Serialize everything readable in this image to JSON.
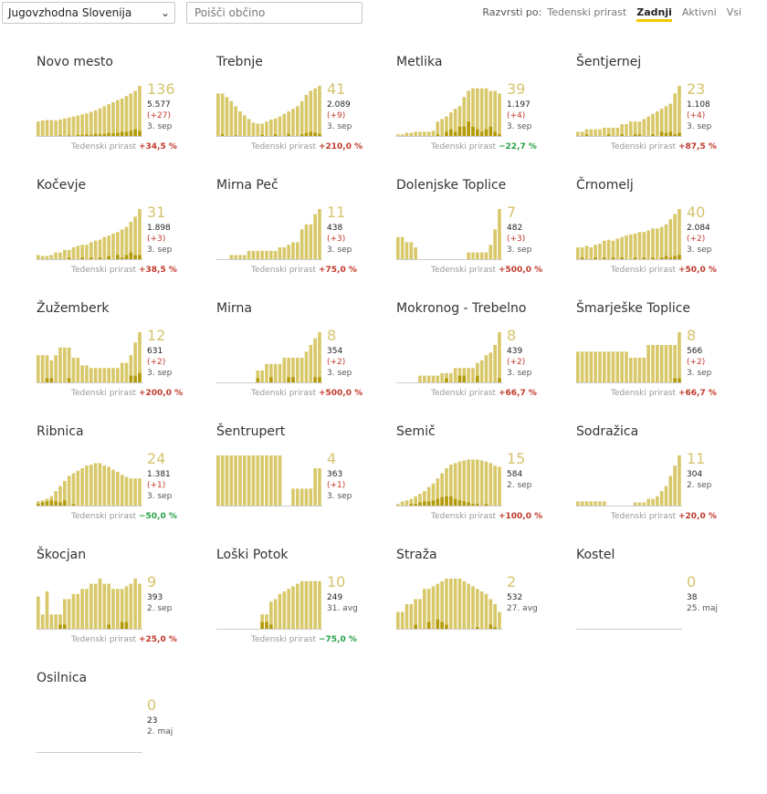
{
  "toolbar": {
    "region_value": "Jugovzhodna Slovenija",
    "search_placeholder": "Poišči občino",
    "sort_label": "Razvrsti po:",
    "sort_options": [
      "Tedenski prirast",
      "Zadnji",
      "Aktivni",
      "Vsi"
    ],
    "sort_active": "Zadnji"
  },
  "growth_label": "Tedenski prirast",
  "colors": {
    "active": "#d8c86a",
    "new": "#b39a08",
    "big_number": "#d5c46e",
    "up": "#c0392b",
    "down": "#27a045"
  },
  "municipalities": [
    {
      "name": "Novo mesto",
      "active": "136",
      "total": "5.577",
      "diff": "(+27)",
      "date": "3. sep",
      "growth": "+34,5 %",
      "trend": "up",
      "bars": [
        0.3,
        0.32,
        0.33,
        0.33,
        0.32,
        0.34,
        0.36,
        0.38,
        0.4,
        0.42,
        0.44,
        0.46,
        0.49,
        0.52,
        0.56,
        0.6,
        0.64,
        0.68,
        0.72,
        0.75,
        0.8,
        0.85,
        0.9,
        1.0
      ],
      "new": [
        0,
        0,
        0,
        0,
        0,
        0.03,
        0,
        0.03,
        0,
        0.04,
        0.04,
        0.05,
        0.04,
        0.06,
        0.05,
        0.06,
        0.08,
        0.07,
        0.08,
        0.1,
        0.1,
        0.12,
        0.15,
        0.12
      ]
    },
    {
      "name": "Trebnje",
      "active": "41",
      "total": "2.089",
      "diff": "(+9)",
      "date": "3. sep",
      "growth": "+210,0 %",
      "trend": "up",
      "bars": [
        0.85,
        0.85,
        0.78,
        0.7,
        0.6,
        0.5,
        0.42,
        0.35,
        0.28,
        0.26,
        0.26,
        0.3,
        0.34,
        0.36,
        0.4,
        0.45,
        0.5,
        0.55,
        0.6,
        0.7,
        0.82,
        0.9,
        0.95,
        1.0
      ],
      "new": [
        0,
        0.05,
        0,
        0,
        0.03,
        0,
        0,
        0,
        0,
        0,
        0.04,
        0,
        0,
        0.05,
        0,
        0,
        0.06,
        0,
        0,
        0.05,
        0.08,
        0.1,
        0.08,
        0.06
      ]
    },
    {
      "name": "Metlika",
      "active": "39",
      "total": "1.197",
      "diff": "(+4)",
      "date": "3. sep",
      "growth": "−22,7 %",
      "trend": "down",
      "bars": [
        0.05,
        0.05,
        0.08,
        0.08,
        0.1,
        0.1,
        0.1,
        0.1,
        0.12,
        0.3,
        0.35,
        0.4,
        0.48,
        0.55,
        0.6,
        0.78,
        0.9,
        0.95,
        0.95,
        0.95,
        0.95,
        0.9,
        0.9,
        0.85
      ],
      "new": [
        0,
        0,
        0,
        0,
        0,
        0,
        0,
        0,
        0,
        0.05,
        0,
        0.1,
        0.15,
        0.1,
        0.2,
        0.2,
        0.3,
        0.2,
        0.15,
        0.1,
        0.15,
        0.2,
        0.1,
        0.05
      ]
    },
    {
      "name": "Šentjernej",
      "active": "23",
      "total": "1.108",
      "diff": "(+4)",
      "date": "3. sep",
      "growth": "+87,5 %",
      "trend": "up",
      "bars": [
        0.1,
        0.1,
        0.15,
        0.15,
        0.15,
        0.15,
        0.18,
        0.18,
        0.18,
        0.18,
        0.25,
        0.25,
        0.3,
        0.3,
        0.3,
        0.35,
        0.4,
        0.45,
        0.5,
        0.55,
        0.6,
        0.65,
        0.85,
        1.0
      ],
      "new": [
        0,
        0,
        0.05,
        0,
        0,
        0,
        0,
        0.05,
        0,
        0,
        0.05,
        0,
        0,
        0.05,
        0.05,
        0,
        0,
        0.05,
        0,
        0.1,
        0.08,
        0.1,
        0.05,
        0.08
      ]
    },
    {
      "name": "Kočevje",
      "active": "31",
      "total": "1.898",
      "diff": "(+3)",
      "date": "3. sep",
      "growth": "+38,5 %",
      "trend": "up",
      "bars": [
        0.1,
        0.08,
        0.08,
        0.1,
        0.15,
        0.15,
        0.2,
        0.2,
        0.25,
        0.28,
        0.3,
        0.3,
        0.35,
        0.38,
        0.4,
        0.45,
        0.48,
        0.52,
        0.55,
        0.6,
        0.65,
        0.75,
        0.85,
        1.0
      ],
      "new": [
        0,
        0,
        0,
        0,
        0,
        0,
        0,
        0.05,
        0,
        0,
        0.05,
        0,
        0.05,
        0,
        0.05,
        0,
        0.08,
        0,
        0.1,
        0.05,
        0.1,
        0.15,
        0.1,
        0.1
      ]
    },
    {
      "name": "Mirna Peč",
      "active": "11",
      "total": "438",
      "diff": "(+3)",
      "date": "3. sep",
      "growth": "+75,0 %",
      "trend": "up",
      "bars": [
        0,
        0,
        0,
        0.1,
        0.1,
        0.1,
        0.1,
        0.18,
        0.18,
        0.18,
        0.18,
        0.18,
        0.18,
        0.18,
        0.25,
        0.25,
        0.3,
        0.35,
        0.35,
        0.6,
        0.7,
        0.7,
        0.9,
        1.0
      ],
      "new": [
        0,
        0,
        0,
        0,
        0,
        0,
        0,
        0,
        0,
        0,
        0,
        0,
        0,
        0,
        0,
        0,
        0,
        0,
        0,
        0,
        0,
        0,
        0,
        0
      ]
    },
    {
      "name": "Dolenjske Toplice",
      "active": "7",
      "total": "482",
      "diff": "(+3)",
      "date": "3. sep",
      "growth": "+500,0 %",
      "trend": "up",
      "bars": [
        0.45,
        0.45,
        0.35,
        0.35,
        0.25,
        0,
        0,
        0,
        0,
        0,
        0,
        0,
        0,
        0,
        0,
        0,
        0.15,
        0.15,
        0.15,
        0.15,
        0.15,
        0.3,
        0.6,
        1.0
      ],
      "new": [
        0,
        0,
        0,
        0,
        0,
        0,
        0,
        0,
        0,
        0,
        0,
        0,
        0,
        0,
        0,
        0,
        0,
        0,
        0,
        0,
        0,
        0,
        0,
        0
      ]
    },
    {
      "name": "Črnomelj",
      "active": "40",
      "total": "2.084",
      "diff": "(+2)",
      "date": "3. sep",
      "growth": "+50,0 %",
      "trend": "up",
      "bars": [
        0.25,
        0.25,
        0.28,
        0.25,
        0.3,
        0.32,
        0.38,
        0.4,
        0.38,
        0.42,
        0.45,
        0.48,
        0.5,
        0.52,
        0.55,
        0.55,
        0.58,
        0.62,
        0.62,
        0.65,
        0.7,
        0.8,
        0.9,
        1.0
      ],
      "new": [
        0,
        0.05,
        0,
        0,
        0.05,
        0,
        0.05,
        0,
        0.05,
        0,
        0.05,
        0,
        0,
        0.05,
        0,
        0.05,
        0,
        0.05,
        0,
        0.05,
        0.08,
        0.05,
        0.08,
        0.1
      ]
    },
    {
      "name": "Žužemberk",
      "active": "12",
      "total": "631",
      "diff": "(+2)",
      "date": "3. sep",
      "growth": "+200,0 %",
      "trend": "up",
      "bars": [
        0.55,
        0.55,
        0.55,
        0.45,
        0.55,
        0.7,
        0.7,
        0.7,
        0.5,
        0.5,
        0.35,
        0.35,
        0.3,
        0.3,
        0.3,
        0.3,
        0.3,
        0.3,
        0.3,
        0.4,
        0.4,
        0.55,
        0.8,
        1.0
      ],
      "new": [
        0,
        0,
        0.1,
        0.1,
        0,
        0,
        0,
        0.1,
        0,
        0,
        0,
        0,
        0,
        0,
        0,
        0,
        0,
        0,
        0,
        0,
        0,
        0.15,
        0.15,
        0.2
      ]
    },
    {
      "name": "Mirna",
      "active": "8",
      "total": "354",
      "diff": "(+2)",
      "date": "3. sep",
      "growth": "+500,0 %",
      "trend": "up",
      "bars": [
        0,
        0,
        0,
        0,
        0,
        0,
        0,
        0,
        0,
        0.25,
        0.25,
        0.38,
        0.38,
        0.38,
        0.38,
        0.5,
        0.5,
        0.5,
        0.5,
        0.5,
        0.62,
        0.75,
        0.88,
        1.0
      ],
      "new": [
        0,
        0,
        0,
        0,
        0,
        0,
        0,
        0,
        0,
        0.1,
        0,
        0,
        0.12,
        0,
        0,
        0,
        0.12,
        0.12,
        0,
        0,
        0,
        0,
        0.12,
        0.12
      ]
    },
    {
      "name": "Mokronog - Trebelno",
      "active": "8",
      "total": "439",
      "diff": "(+2)",
      "date": "3. sep",
      "growth": "+66,7 %",
      "trend": "up",
      "bars": [
        0,
        0,
        0,
        0,
        0,
        0.15,
        0.15,
        0.15,
        0.15,
        0.15,
        0.2,
        0.2,
        0.2,
        0.3,
        0.3,
        0.3,
        0.3,
        0.3,
        0.4,
        0.45,
        0.55,
        0.6,
        0.75,
        1.0
      ],
      "new": [
        0,
        0,
        0,
        0,
        0,
        0,
        0,
        0,
        0,
        0,
        0,
        0.1,
        0,
        0,
        0.15,
        0.15,
        0,
        0,
        0.15,
        0,
        0,
        0,
        0,
        0.1
      ]
    },
    {
      "name": "Šmarješke Toplice",
      "active": "8",
      "total": "566",
      "diff": "(+2)",
      "date": "3. sep",
      "growth": "+66,7 %",
      "trend": "up",
      "bars": [
        0.62,
        0.62,
        0.62,
        0.62,
        0.62,
        0.62,
        0.62,
        0.62,
        0.62,
        0.62,
        0.62,
        0.62,
        0.5,
        0.5,
        0.5,
        0.5,
        0.75,
        0.75,
        0.75,
        0.75,
        0.75,
        0.75,
        0.75,
        1.0
      ],
      "new": [
        0,
        0,
        0,
        0,
        0,
        0,
        0,
        0,
        0,
        0,
        0,
        0,
        0,
        0,
        0,
        0,
        0,
        0,
        0,
        0,
        0,
        0,
        0.1,
        0.1
      ]
    },
    {
      "name": "Ribnica",
      "active": "24",
      "total": "1.381",
      "diff": "(+1)",
      "date": "3. sep",
      "growth": "−50,0 %",
      "trend": "down",
      "bars": [
        0.1,
        0.12,
        0.15,
        0.2,
        0.3,
        0.4,
        0.5,
        0.6,
        0.65,
        0.7,
        0.75,
        0.8,
        0.82,
        0.85,
        0.85,
        0.8,
        0.78,
        0.72,
        0.68,
        0.62,
        0.58,
        0.55,
        0.55,
        0.55
      ],
      "new": [
        0.05,
        0.08,
        0.1,
        0.12,
        0.1,
        0.08,
        0.12,
        0,
        0.05,
        0,
        0,
        0,
        0,
        0,
        0,
        0,
        0,
        0,
        0,
        0,
        0,
        0,
        0,
        0
      ]
    },
    {
      "name": "Šentrupert",
      "active": "4",
      "total": "363",
      "diff": "(+1)",
      "date": "3. sep",
      "growth": "",
      "trend": "up",
      "bars": [
        1.0,
        1.0,
        1.0,
        1.0,
        1.0,
        1.0,
        1.0,
        1.0,
        1.0,
        1.0,
        1.0,
        1.0,
        1.0,
        1.0,
        1.0,
        0,
        0,
        0.35,
        0.35,
        0.35,
        0.35,
        0.35,
        0.75,
        0.75
      ],
      "new": [
        0,
        0,
        0,
        0,
        0,
        0,
        0,
        0,
        0,
        0,
        0,
        0,
        0,
        0,
        0,
        0,
        0,
        0,
        0,
        0,
        0,
        0,
        0,
        0
      ]
    },
    {
      "name": "Semič",
      "active": "15",
      "total": "584",
      "diff": "",
      "date": "2. sep",
      "growth": "+100,0 %",
      "trend": "up",
      "bars": [
        0.05,
        0.1,
        0.12,
        0.15,
        0.2,
        0.25,
        0.3,
        0.38,
        0.45,
        0.55,
        0.65,
        0.75,
        0.82,
        0.85,
        0.88,
        0.9,
        0.92,
        0.92,
        0.92,
        0.9,
        0.88,
        0.85,
        0.8,
        0.78
      ],
      "new": [
        0,
        0,
        0,
        0.05,
        0.05,
        0.08,
        0.1,
        0.1,
        0.12,
        0.15,
        0.18,
        0.2,
        0.2,
        0.15,
        0.12,
        0.1,
        0.08,
        0.05,
        0.05,
        0,
        0.05,
        0,
        0,
        0
      ]
    },
    {
      "name": "Sodražica",
      "active": "11",
      "total": "304",
      "diff": "",
      "date": "2. sep",
      "growth": "+20,0 %",
      "trend": "up",
      "bars": [
        0.1,
        0.1,
        0.1,
        0.1,
        0.1,
        0.1,
        0.1,
        0,
        0,
        0,
        0,
        0,
        0,
        0.08,
        0.08,
        0.08,
        0.15,
        0.15,
        0.2,
        0.3,
        0.4,
        0.6,
        0.8,
        1.0
      ],
      "new": [
        0,
        0,
        0,
        0,
        0,
        0,
        0,
        0,
        0,
        0,
        0,
        0,
        0,
        0,
        0,
        0,
        0,
        0,
        0,
        0,
        0,
        0,
        0,
        0
      ]
    },
    {
      "name": "Škocjan",
      "active": "9",
      "total": "393",
      "diff": "",
      "date": "2. sep",
      "growth": "+25,0 %",
      "trend": "up",
      "bars": [
        0.65,
        0.3,
        0.75,
        0.3,
        0.3,
        0.3,
        0.6,
        0.6,
        0.7,
        0.7,
        0.8,
        0.8,
        0.9,
        0.9,
        1.0,
        0.9,
        0.9,
        0.8,
        0.8,
        0.8,
        0.85,
        0.9,
        1.0,
        0.9
      ],
      "new": [
        0,
        0,
        0,
        0,
        0,
        0.1,
        0.1,
        0,
        0,
        0,
        0,
        0,
        0,
        0,
        0,
        0,
        0.1,
        0,
        0,
        0.15,
        0.15,
        0,
        0,
        0
      ]
    },
    {
      "name": "Loški Potok",
      "active": "10",
      "total": "249",
      "diff": "",
      "date": "31. avg",
      "growth": "−75,0 %",
      "trend": "down",
      "bars": [
        0,
        0,
        0,
        0,
        0,
        0,
        0,
        0,
        0,
        0,
        0.3,
        0.3,
        0.55,
        0.6,
        0.7,
        0.75,
        0.8,
        0.85,
        0.9,
        0.95,
        0.95,
        0.95,
        0.95,
        0.95
      ],
      "new": [
        0,
        0,
        0,
        0,
        0,
        0,
        0,
        0,
        0,
        0,
        0.15,
        0.15,
        0.1,
        0,
        0,
        0,
        0,
        0,
        0,
        0,
        0,
        0,
        0,
        0
      ]
    },
    {
      "name": "Straža",
      "active": "2",
      "total": "532",
      "diff": "",
      "date": "27. avg",
      "growth": "",
      "trend": "up",
      "bars": [
        0.35,
        0.35,
        0.5,
        0.5,
        0.6,
        0.6,
        0.8,
        0.8,
        0.85,
        0.9,
        0.95,
        1.0,
        1.0,
        1.0,
        1.0,
        0.95,
        0.9,
        0.85,
        0.8,
        0.75,
        0.7,
        0.6,
        0.5,
        0.35
      ],
      "new": [
        0,
        0,
        0,
        0,
        0.1,
        0,
        0,
        0.15,
        0,
        0.2,
        0.15,
        0.1,
        0,
        0,
        0,
        0,
        0,
        0,
        0.05,
        0,
        0,
        0.1,
        0.05,
        0
      ]
    },
    {
      "name": "Kostel",
      "active": "0",
      "total": "38",
      "diff": "",
      "date": "25. maj",
      "growth": "",
      "trend": "up",
      "bars": [],
      "new": []
    },
    {
      "name": "Osilnica",
      "active": "0",
      "total": "23",
      "diff": "",
      "date": "2. maj",
      "growth": "",
      "trend": "up",
      "bars": [],
      "new": []
    }
  ]
}
